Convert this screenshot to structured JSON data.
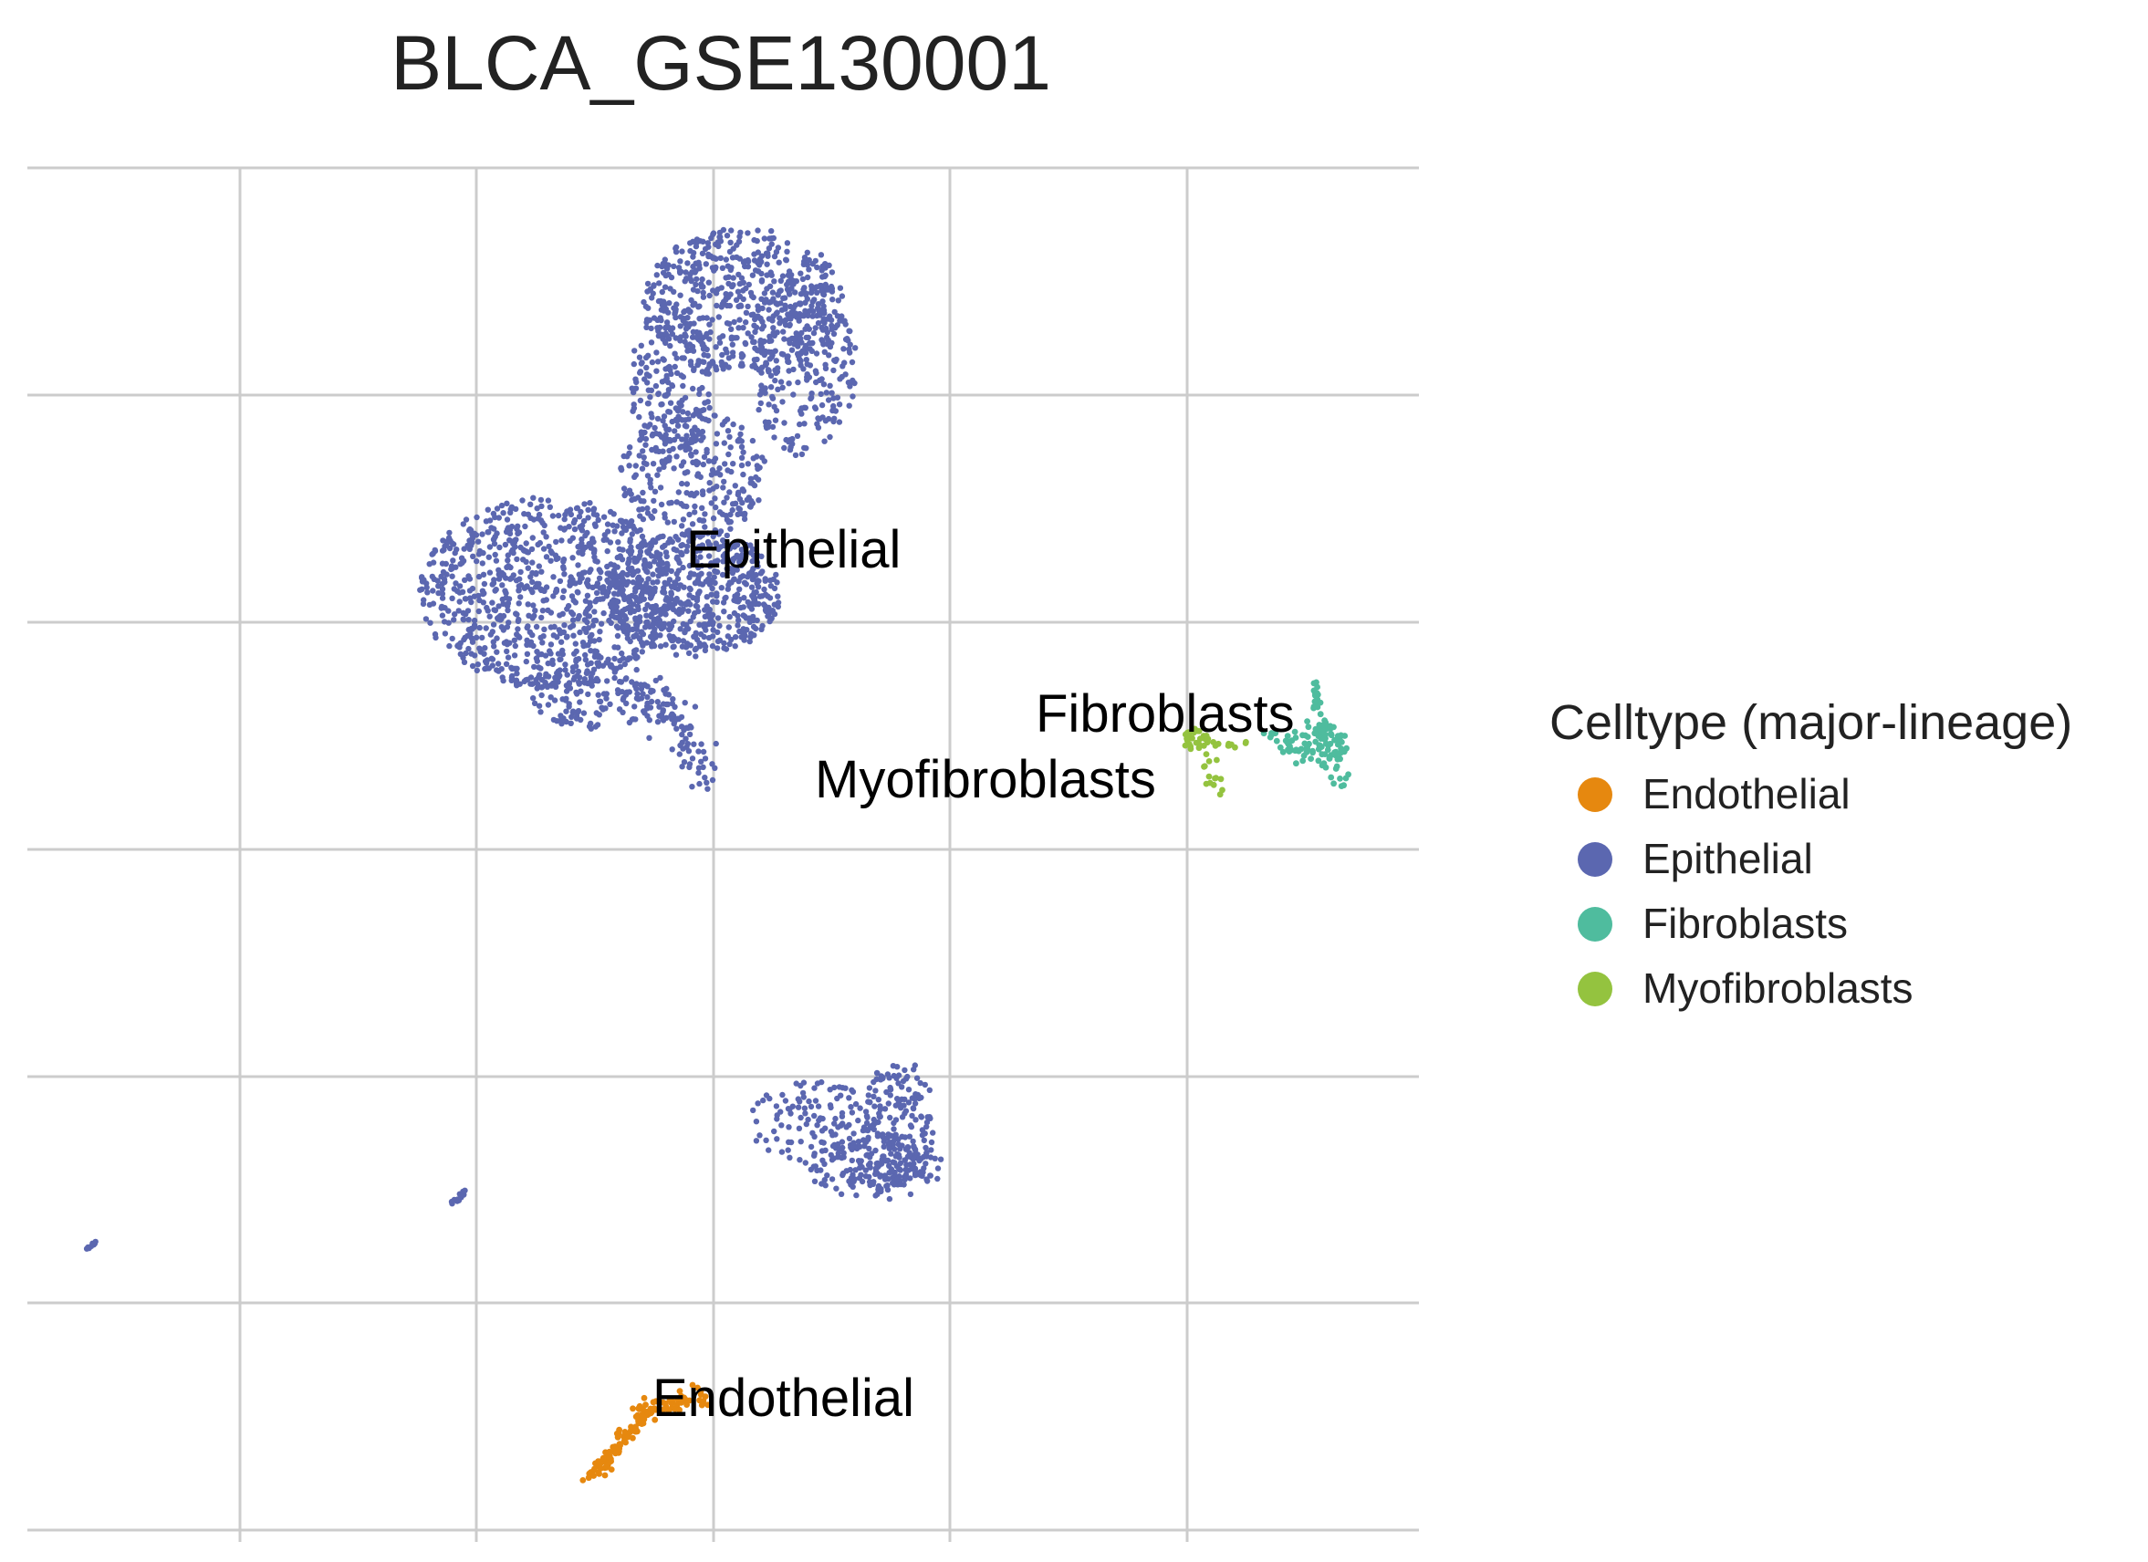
{
  "chart_data": {
    "type": "scatter",
    "title": "BLCA_GSE130001",
    "xlabel": "",
    "ylabel": "",
    "grid": true,
    "tick_labels_shown": false,
    "legend": {
      "title": "Celltype (major-lineage)",
      "placement": "right",
      "entries": [
        {
          "name": "Endothelial",
          "color": "#E6880F"
        },
        {
          "name": "Epithelial",
          "color": "#5B67B0"
        },
        {
          "name": "Fibroblasts",
          "color": "#4FBC9E"
        },
        {
          "name": "Myofibroblasts",
          "color": "#94C33F"
        }
      ]
    },
    "cluster_labels": [
      "Epithelial",
      "Fibroblasts",
      "Myofibroblasts",
      "Endothelial"
    ],
    "series": [
      {
        "name": "Epithelial",
        "color": "#5B67B0"
      },
      {
        "name": "Fibroblasts",
        "color": "#4FBC9E"
      },
      {
        "name": "Myofibroblasts",
        "color": "#94C33F"
      },
      {
        "name": "Endothelial",
        "color": "#E6880F"
      }
    ]
  }
}
